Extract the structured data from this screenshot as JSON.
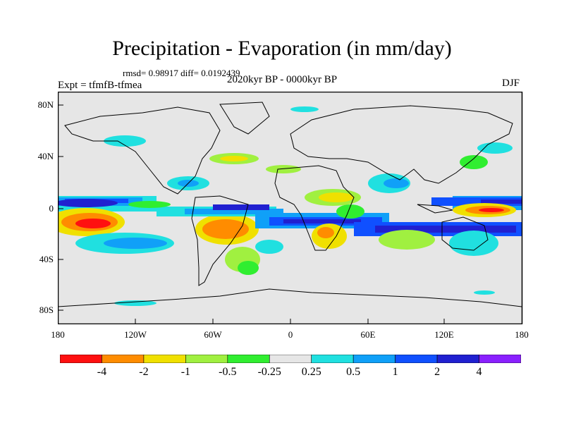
{
  "title": "Precipitation - Evaporation (in mm/day)",
  "stats": "rmsd= 0.98917 diff= 0.0192439",
  "experiment": "Expt = tfmfB-tfmea",
  "period": "2020kyr BP - 0000kyr BP",
  "season": "DJF",
  "map": {
    "lat_ticks": [
      "80N",
      "40N",
      "0",
      "40S",
      "80S"
    ],
    "lon_ticks": [
      "180",
      "120W",
      "60W",
      "0",
      "60E",
      "120E",
      "180"
    ]
  },
  "colorbar": {
    "labels": [
      "-4",
      "-2",
      "-1",
      "-0.5",
      "-0.25",
      "0.25",
      "0.5",
      "1",
      "2",
      "4"
    ],
    "colors": [
      "#ff1010",
      "#ff8c00",
      "#f0e000",
      "#a0f040",
      "#30ee30",
      "#e6e6e6",
      "#20e0e0",
      "#10a0f8",
      "#1050ff",
      "#2020d0",
      "#8a20ff"
    ]
  }
}
